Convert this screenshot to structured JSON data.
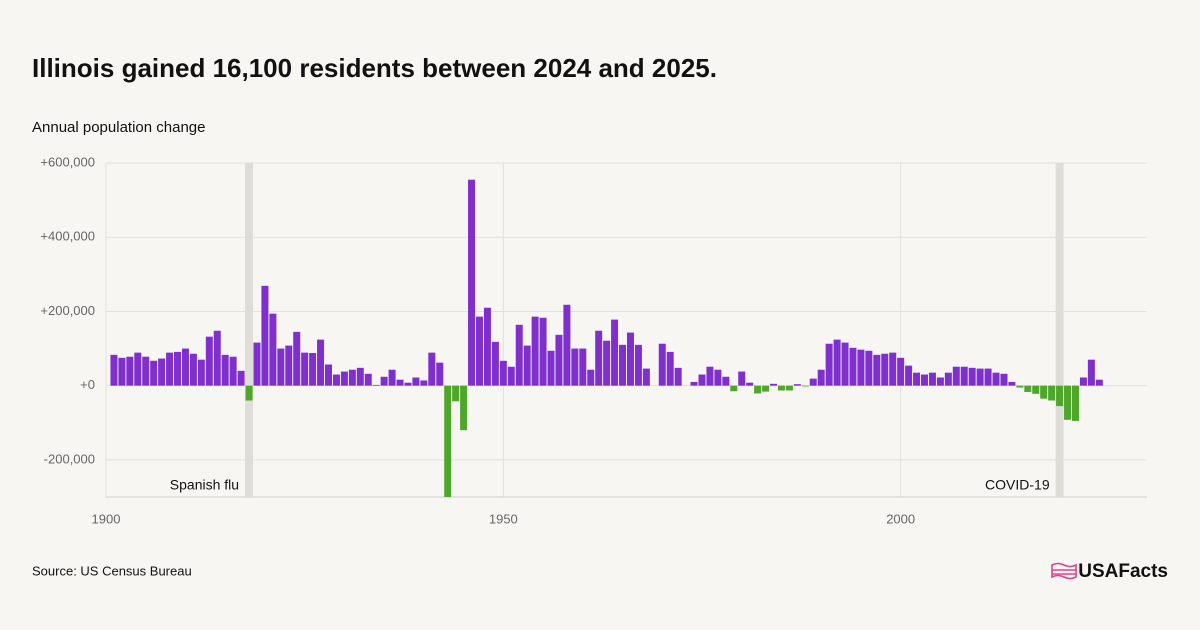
{
  "chart_data": {
    "type": "bar",
    "title": "Illinois gained 16,100 residents between 2024 and 2025.",
    "subtitle": "Annual population change",
    "source": "Source: US Census Bureau",
    "logo": "USAFacts",
    "x": [
      1901,
      1902,
      1903,
      1904,
      1905,
      1906,
      1907,
      1908,
      1909,
      1910,
      1911,
      1912,
      1913,
      1914,
      1915,
      1916,
      1917,
      1918,
      1919,
      1920,
      1921,
      1922,
      1923,
      1924,
      1925,
      1926,
      1927,
      1928,
      1929,
      1930,
      1931,
      1932,
      1933,
      1934,
      1935,
      1936,
      1937,
      1938,
      1939,
      1940,
      1941,
      1942,
      1943,
      1944,
      1945,
      1946,
      1947,
      1948,
      1949,
      1950,
      1951,
      1952,
      1953,
      1954,
      1955,
      1956,
      1957,
      1958,
      1959,
      1960,
      1961,
      1962,
      1963,
      1964,
      1965,
      1966,
      1967,
      1968,
      1969,
      1970,
      1971,
      1972,
      1973,
      1974,
      1975,
      1976,
      1977,
      1978,
      1979,
      1980,
      1981,
      1982,
      1983,
      1984,
      1985,
      1986,
      1987,
      1988,
      1989,
      1990,
      1991,
      1992,
      1993,
      1994,
      1995,
      1996,
      1997,
      1998,
      1999,
      2000,
      2001,
      2002,
      2003,
      2004,
      2005,
      2006,
      2007,
      2008,
      2009,
      2010,
      2011,
      2012,
      2013,
      2014,
      2015,
      2016,
      2017,
      2018,
      2019,
      2020,
      2021,
      2022,
      2023,
      2024,
      2025
    ],
    "values": [
      83000,
      75000,
      78000,
      89000,
      78000,
      67000,
      73000,
      89000,
      91000,
      100000,
      86000,
      70000,
      132000,
      148000,
      83000,
      78000,
      40000,
      -40000,
      116000,
      269000,
      194000,
      100000,
      108000,
      145000,
      89000,
      88000,
      124000,
      57000,
      30000,
      38000,
      43000,
      48000,
      32000,
      2000,
      24000,
      43000,
      16000,
      8000,
      22000,
      14000,
      89000,
      62000,
      -300000,
      -42000,
      -120000,
      555000,
      186000,
      210000,
      118000,
      67000,
      51000,
      164000,
      108000,
      186000,
      183000,
      94000,
      137000,
      218000,
      100000,
      100000,
      43000,
      148000,
      121000,
      178000,
      110000,
      143000,
      110000,
      46000,
      0,
      113000,
      91000,
      48000,
      0,
      10000,
      30000,
      51000,
      43000,
      24000,
      -15000,
      38000,
      8000,
      -21000,
      -16000,
      5000,
      -13000,
      -13000,
      4000,
      -2000,
      19000,
      43000,
      113000,
      124000,
      116000,
      102000,
      97000,
      94000,
      83000,
      86000,
      89000,
      75000,
      54000,
      35000,
      30000,
      35000,
      22000,
      35000,
      51000,
      51000,
      48000,
      46000,
      46000,
      35000,
      32000,
      10000,
      -5000,
      -17000,
      -22000,
      -35000,
      -40000,
      -55000,
      -92000,
      -95000,
      22000,
      70000,
      16100
    ],
    "colors": {
      "positive": "#7e2fcc",
      "negative": "#4ea72a"
    },
    "xlim": [
      1900,
      2031
    ],
    "xticks": [
      1900,
      1950,
      2000
    ],
    "ylim": [
      -300000,
      600000
    ],
    "yticks": [
      {
        "value": -200000,
        "label": "-200,000"
      },
      {
        "value": 0,
        "label": "+0"
      },
      {
        "value": 200000,
        "label": "+200,000"
      },
      {
        "value": 400000,
        "label": "+400,000"
      },
      {
        "value": 600000,
        "label": "+600,000"
      }
    ],
    "grid": true,
    "annotations": [
      {
        "text": "Spanish flu",
        "x": 1918
      },
      {
        "text": "COVID-19",
        "x": 2020
      }
    ]
  }
}
